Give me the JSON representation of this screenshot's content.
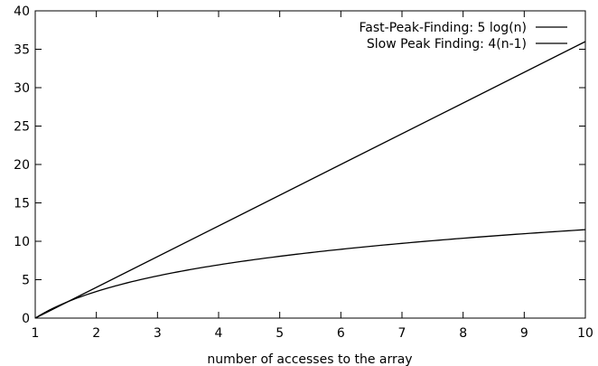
{
  "chart_data": {
    "type": "line",
    "title": "",
    "xlabel": "number of accesses to the array",
    "ylabel": "",
    "xlim": [
      1,
      10
    ],
    "ylim": [
      0,
      40
    ],
    "x_ticks": [
      1,
      2,
      3,
      4,
      5,
      6,
      7,
      8,
      9,
      10
    ],
    "y_ticks": [
      0,
      5,
      10,
      15,
      20,
      25,
      30,
      35,
      40
    ],
    "grid": false,
    "legend_position": "top-right",
    "series": [
      {
        "name": "Fast-Peak-Finding: 5 log(n)",
        "color": "#000000",
        "x": [
          1,
          1.5,
          2,
          2.5,
          3,
          3.5,
          4,
          4.5,
          5,
          5.5,
          6,
          6.5,
          7,
          7.5,
          8,
          8.5,
          9,
          9.5,
          10
        ],
        "y": [
          0,
          2.03,
          3.47,
          4.58,
          5.49,
          6.26,
          6.93,
          7.52,
          8.05,
          8.52,
          8.96,
          9.36,
          9.73,
          10.07,
          10.4,
          10.7,
          10.99,
          11.26,
          11.51
        ]
      },
      {
        "name": "Slow Peak Finding: 4(n-1)",
        "color": "#000000",
        "x": [
          1,
          10
        ],
        "y": [
          0,
          36
        ]
      }
    ]
  }
}
